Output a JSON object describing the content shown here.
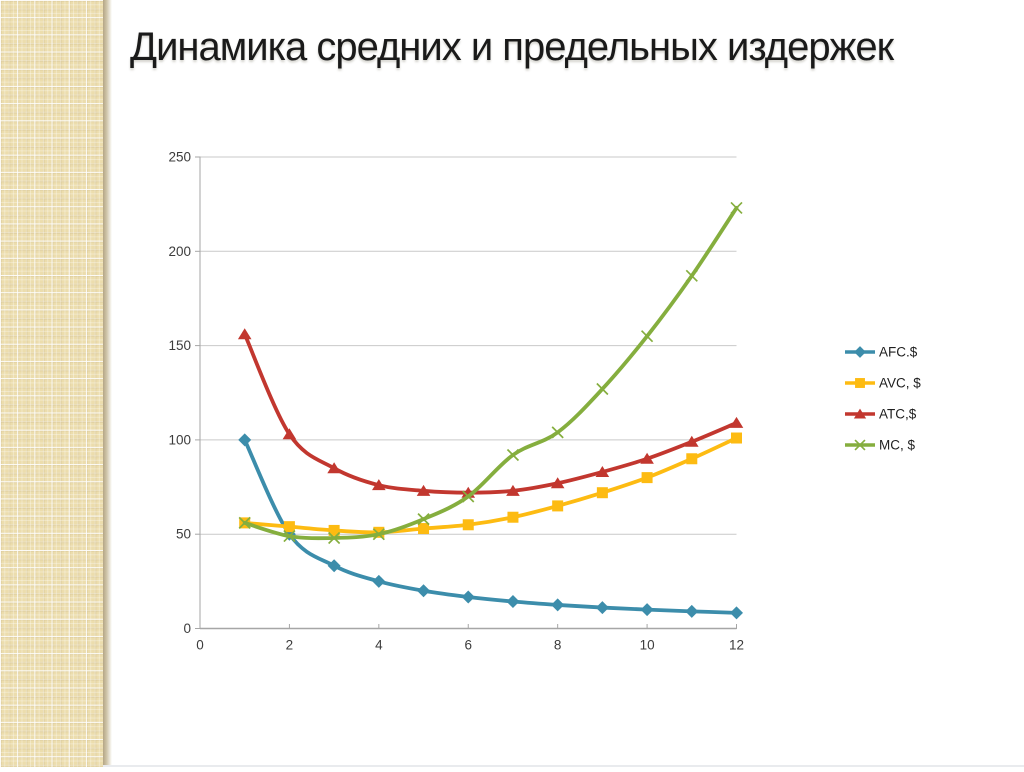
{
  "slide": {
    "title": "Динамика средних и предельных издержек"
  },
  "colors": {
    "background": "#ffffff",
    "strip_base": "#ecddad",
    "strip_edge": "#b4a685",
    "gridline": "#c9c9c9",
    "axis_line": "#a6a6a6",
    "tick_label": "#3c3c3c",
    "legend_text": "#1f1f1f",
    "title_text": "#1a1a1a"
  },
  "chart_data": {
    "type": "line",
    "title": "",
    "xlabel": "",
    "ylabel": "",
    "x": [
      1,
      2,
      3,
      4,
      5,
      6,
      7,
      8,
      9,
      10,
      11,
      12
    ],
    "series": [
      {
        "name": "AFC.$",
        "color": "#3c8dab",
        "marker": "diamond",
        "values": [
          100,
          50,
          33.3,
          25,
          20,
          16.7,
          14.3,
          12.5,
          11.1,
          10,
          9.1,
          8.3
        ]
      },
      {
        "name": "AVC, $",
        "color": "#fdbb12",
        "marker": "square",
        "values": [
          56,
          54,
          52,
          51,
          53,
          55,
          59,
          65,
          72,
          80,
          90,
          101
        ]
      },
      {
        "name": "ATC,$",
        "color": "#c2372f",
        "marker": "triangle",
        "values": [
          156,
          103,
          85,
          76,
          73,
          72,
          73,
          77,
          83,
          90,
          99,
          109
        ]
      },
      {
        "name": "MC, $",
        "color": "#85ae3e",
        "marker": "x",
        "values": [
          56,
          49,
          48,
          50,
          58,
          70,
          92,
          104,
          127,
          155,
          187,
          223
        ]
      }
    ],
    "xlim": [
      0,
      12
    ],
    "ylim": [
      0,
      250
    ],
    "x_ticks": [
      0,
      2,
      4,
      6,
      8,
      10,
      12
    ],
    "y_ticks": [
      0,
      50,
      100,
      150,
      200,
      250
    ],
    "grid": "horizontal",
    "legend_position": "right",
    "legend_labels": [
      "AFC.$",
      "AVC, $",
      "ATC,$",
      "MC, $"
    ]
  }
}
